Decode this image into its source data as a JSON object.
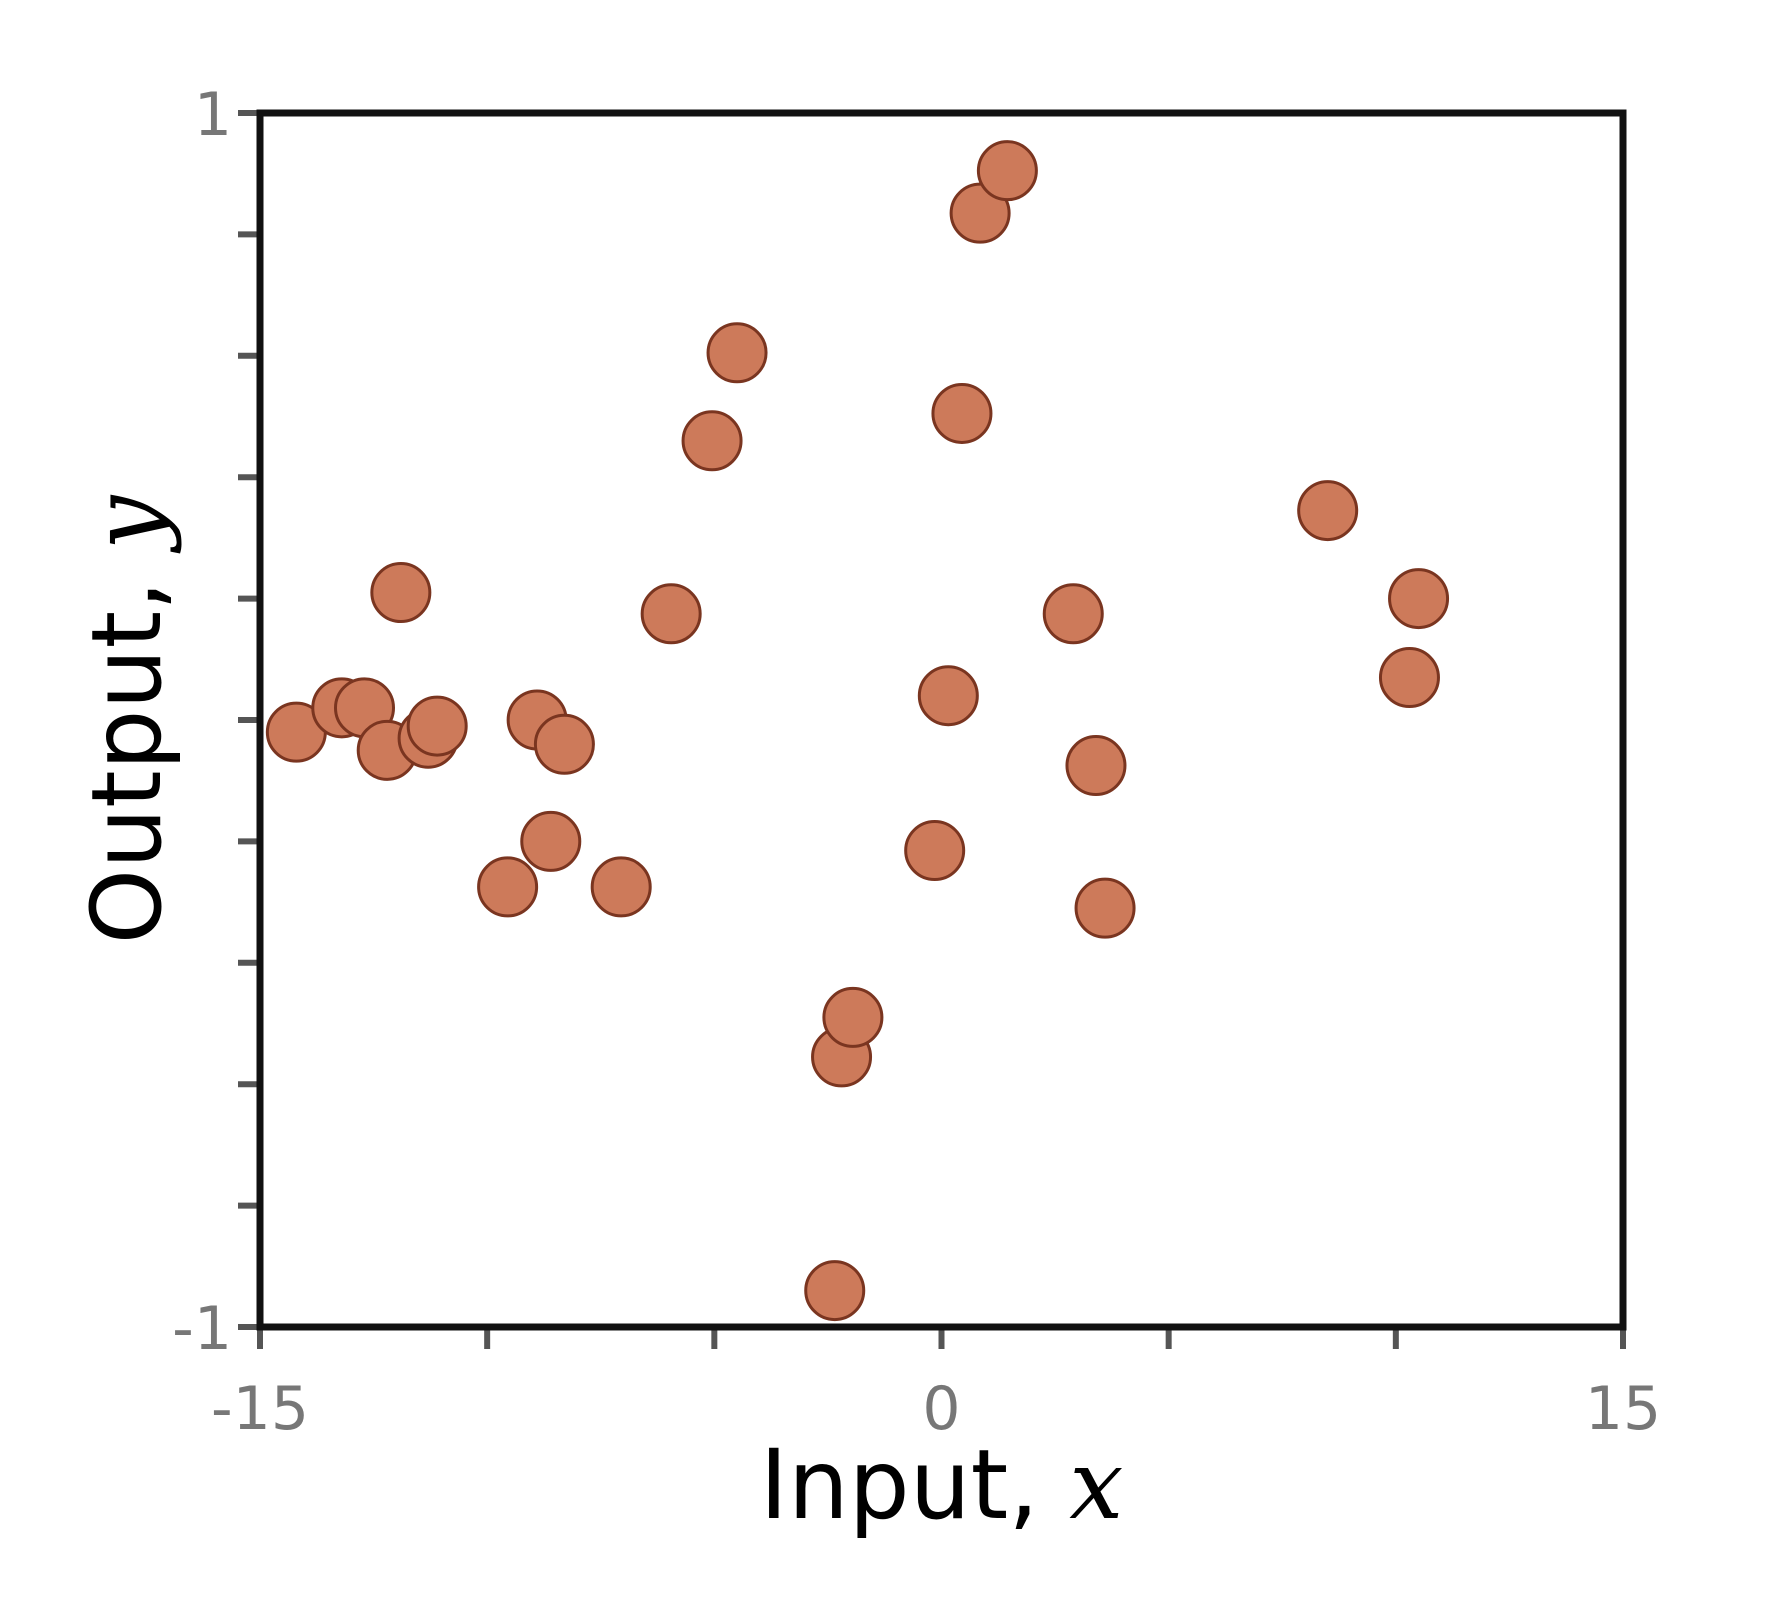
{
  "chart_data": {
    "type": "scatter",
    "xlabel_text": "Input, ",
    "xlabel_var": "x",
    "ylabel_text": "Output, ",
    "ylabel_var": "y",
    "xlim": [
      -15,
      15
    ],
    "ylim": [
      -1,
      1
    ],
    "x_ticks": [
      -15,
      -10,
      -5,
      0,
      5,
      10,
      15
    ],
    "x_tick_labels": {
      "-15": "-15",
      "0": "0",
      "15": "15"
    },
    "y_ticks": [
      -1,
      -0.8,
      -0.6,
      -0.4,
      -0.2,
      0,
      0.2,
      0.4,
      0.6,
      0.8,
      1
    ],
    "y_tick_labels": {
      "-1": "-1",
      "1": "1"
    },
    "grid": false,
    "marker_color": "#cd7a5a",
    "marker_edge_color": "#7a3520",
    "points": [
      {
        "x": -14.2,
        "y": -0.02
      },
      {
        "x": -13.2,
        "y": 0.02
      },
      {
        "x": -12.7,
        "y": 0.02
      },
      {
        "x": -12.2,
        "y": -0.05
      },
      {
        "x": -11.9,
        "y": 0.21
      },
      {
        "x": -11.3,
        "y": -0.03
      },
      {
        "x": -11.1,
        "y": -0.01
      },
      {
        "x": -9.55,
        "y": -0.275
      },
      {
        "x": -8.9,
        "y": 0.0
      },
      {
        "x": -8.6,
        "y": -0.2
      },
      {
        "x": -8.3,
        "y": -0.04
      },
      {
        "x": -7.05,
        "y": -0.275
      },
      {
        "x": -5.95,
        "y": 0.175
      },
      {
        "x": -5.05,
        "y": 0.46
      },
      {
        "x": -4.5,
        "y": 0.605
      },
      {
        "x": -2.2,
        "y": -0.555
      },
      {
        "x": -1.95,
        "y": -0.49
      },
      {
        "x": -2.35,
        "y": -0.94
      },
      {
        "x": -0.15,
        "y": -0.215
      },
      {
        "x": 0.15,
        "y": 0.04
      },
      {
        "x": 0.45,
        "y": 0.505
      },
      {
        "x": 0.85,
        "y": 0.835
      },
      {
        "x": 1.45,
        "y": 0.905
      },
      {
        "x": 2.9,
        "y": 0.175
      },
      {
        "x": 3.4,
        "y": -0.075
      },
      {
        "x": 3.6,
        "y": -0.31
      },
      {
        "x": 8.5,
        "y": 0.345
      },
      {
        "x": 10.3,
        "y": 0.07
      },
      {
        "x": 10.5,
        "y": 0.2
      }
    ]
  }
}
